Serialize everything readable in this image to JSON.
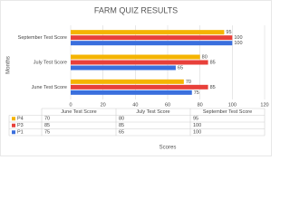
{
  "chart_data": {
    "type": "bar",
    "orientation": "horizontal",
    "title": "FARM QUIZ RESULTS",
    "y_label": "Months",
    "x_label": "Scores",
    "categories": [
      "June Test Score",
      "July Test Score",
      "September Test Score"
    ],
    "series": [
      {
        "name": "P4",
        "color": "#f5b400",
        "values": [
          70,
          80,
          95
        ]
      },
      {
        "name": "P3",
        "color": "#e8403a",
        "values": [
          85,
          85,
          100
        ]
      },
      {
        "name": "P1",
        "color": "#3a6fdd",
        "values": [
          75,
          65,
          100
        ]
      }
    ],
    "xlim": [
      0,
      120
    ],
    "xticks": [
      0,
      20,
      40,
      60,
      80,
      100,
      120
    ],
    "grid": true,
    "data_table": true
  }
}
